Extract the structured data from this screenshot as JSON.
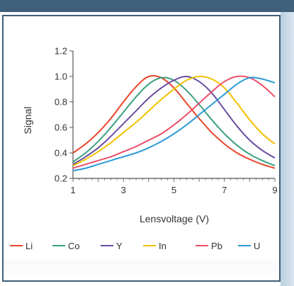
{
  "chart_data": {
    "type": "line",
    "xlabel": "Lensvoltage (V)",
    "ylabel": "Signal",
    "xlim": [
      1,
      9
    ],
    "ylim": [
      0.2,
      1.2
    ],
    "xticks": [
      "1",
      "3",
      "5",
      "7",
      "9"
    ],
    "yticks": [
      "0.2",
      "0.4",
      "0.6",
      "0.8",
      "1.0",
      "1.2"
    ],
    "grid": false,
    "legend_position": "bottom",
    "series": [
      {
        "name": "Li",
        "color": "#e8452a",
        "x": [
          1,
          1.5,
          2,
          2.5,
          3,
          3.5,
          4,
          4.5,
          5,
          5.5,
          6,
          6.5,
          7,
          7.5,
          8,
          8.5,
          9
        ],
        "y": [
          0.4,
          0.47,
          0.56,
          0.67,
          0.8,
          0.92,
          1.0,
          0.99,
          0.91,
          0.79,
          0.67,
          0.56,
          0.47,
          0.4,
          0.35,
          0.31,
          0.28
        ]
      },
      {
        "name": "Co",
        "color": "#3aa17e",
        "x": [
          1,
          1.5,
          2,
          2.5,
          3,
          3.5,
          4,
          4.5,
          5,
          5.5,
          6,
          6.5,
          7,
          7.5,
          8,
          8.5,
          9
        ],
        "y": [
          0.33,
          0.4,
          0.49,
          0.6,
          0.72,
          0.84,
          0.94,
          0.99,
          0.97,
          0.89,
          0.78,
          0.66,
          0.55,
          0.46,
          0.39,
          0.34,
          0.3
        ]
      },
      {
        "name": "Y",
        "color": "#6a4ea0",
        "x": [
          1,
          1.5,
          2,
          2.5,
          3,
          3.5,
          4,
          4.5,
          5,
          5.5,
          6,
          6.5,
          7,
          7.5,
          8,
          8.5,
          9
        ],
        "y": [
          0.31,
          0.37,
          0.44,
          0.53,
          0.63,
          0.73,
          0.83,
          0.91,
          0.97,
          1.0,
          0.96,
          0.87,
          0.74,
          0.61,
          0.5,
          0.42,
          0.36
        ]
      },
      {
        "name": "In",
        "color": "#f2c200",
        "x": [
          1,
          1.5,
          2,
          2.5,
          3,
          3.5,
          4,
          4.5,
          5,
          5.5,
          6,
          6.5,
          7,
          7.5,
          8,
          8.5,
          9
        ],
        "y": [
          0.3,
          0.35,
          0.41,
          0.48,
          0.56,
          0.64,
          0.73,
          0.82,
          0.9,
          0.97,
          1.0,
          0.98,
          0.91,
          0.79,
          0.66,
          0.55,
          0.47
        ]
      },
      {
        "name": "Pb",
        "color": "#ec4f6a",
        "x": [
          1,
          1.5,
          2,
          2.5,
          3,
          3.5,
          4,
          4.5,
          5,
          5.5,
          6,
          6.5,
          7,
          7.5,
          8,
          8.5,
          9
        ],
        "y": [
          0.28,
          0.31,
          0.34,
          0.37,
          0.41,
          0.45,
          0.5,
          0.55,
          0.62,
          0.7,
          0.79,
          0.88,
          0.96,
          1.0,
          0.99,
          0.93,
          0.84
        ]
      },
      {
        "name": "U",
        "color": "#2d9ad6",
        "x": [
          1,
          1.5,
          2,
          2.5,
          3,
          3.5,
          4,
          4.5,
          5,
          5.5,
          6,
          6.5,
          7,
          7.5,
          8,
          8.5,
          9
        ],
        "y": [
          0.26,
          0.28,
          0.31,
          0.34,
          0.37,
          0.4,
          0.44,
          0.49,
          0.55,
          0.62,
          0.7,
          0.78,
          0.86,
          0.94,
          0.99,
          0.98,
          0.95
        ]
      }
    ]
  }
}
